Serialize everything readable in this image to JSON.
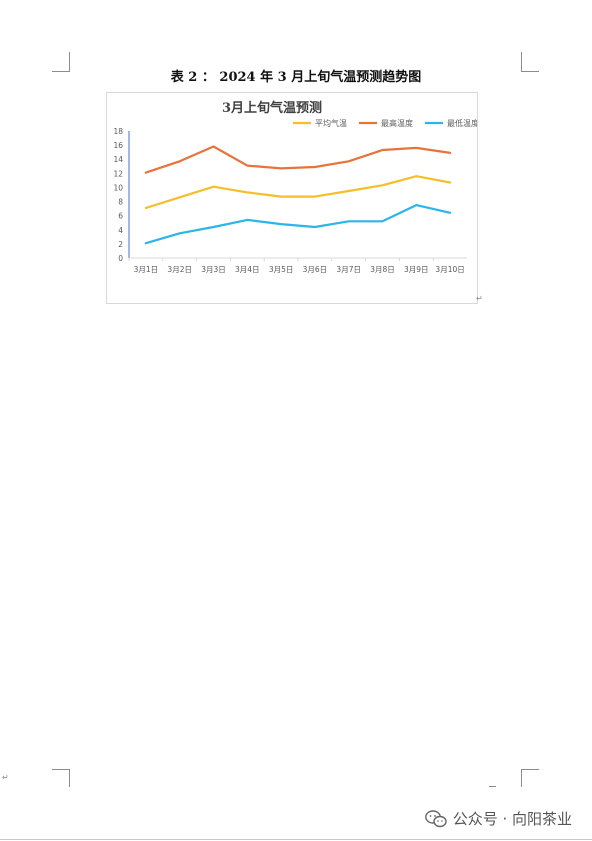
{
  "document": {
    "caption": "表 2 ： 2024 年 3 月上旬气温预测趋势图",
    "paragraph_mark": "↵",
    "watermark": "公众号 · 向阳茶业"
  },
  "chart_data": {
    "type": "line",
    "title": "3月上旬气温预测",
    "categories": [
      "3月1日",
      "3月2日",
      "3月3日",
      "3月4日",
      "3月5日",
      "3月6日",
      "3月7日",
      "3月8日",
      "3月9日",
      "3月10日"
    ],
    "ylim": [
      0,
      18
    ],
    "yticks": [
      0,
      2,
      4,
      6,
      8,
      10,
      12,
      14,
      16,
      18
    ],
    "legend_position": "top-right",
    "grid": false,
    "series": [
      {
        "name": "平均气温",
        "color": "#F5BE2A",
        "values": [
          7.1,
          8.6,
          10.1,
          9.3,
          8.7,
          8.7,
          9.5,
          10.3,
          11.6,
          10.7
        ]
      },
      {
        "name": "最高温度",
        "color": "#E8733A",
        "values": [
          12.1,
          13.7,
          15.8,
          13.1,
          12.7,
          12.9,
          13.7,
          15.3,
          15.6,
          14.9
        ]
      },
      {
        "name": "最低温度",
        "color": "#2CB5E8",
        "values": [
          2.1,
          3.5,
          4.4,
          5.4,
          4.8,
          4.4,
          5.2,
          5.2,
          7.5,
          6.4
        ]
      }
    ]
  }
}
